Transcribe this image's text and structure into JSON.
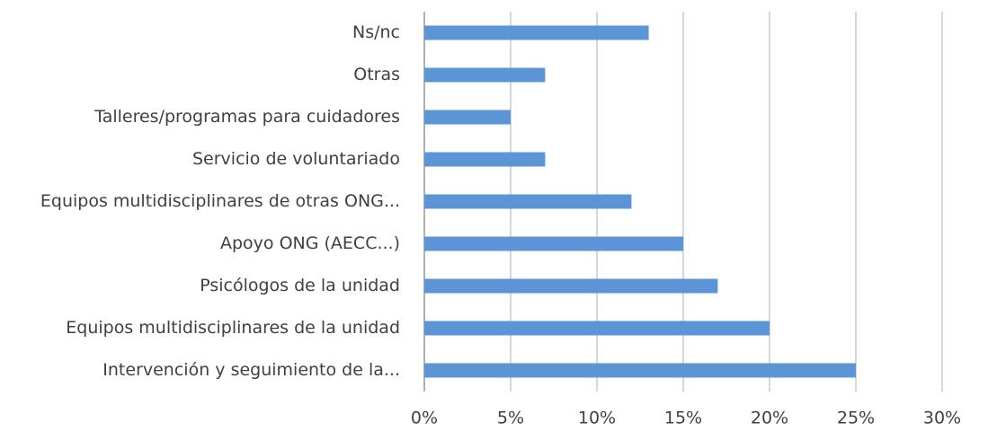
{
  "chart_data": {
    "type": "hbar",
    "categories": [
      "Ns/nc",
      "Otras",
      "Talleres/programas  para cuidadores",
      "Servicio de voluntariado",
      "Equipos multidisciplinares de otras ONG...",
      "Apoyo ONG (AECC...)",
      "Psicólogos de la unidad",
      "Equipos multidisciplinares de la unidad",
      "Intervención y seguimiento de la..."
    ],
    "values": [
      13,
      7,
      5,
      7,
      12,
      15,
      17,
      20,
      25
    ],
    "color": "#5b95d5",
    "xlim": [
      0,
      30
    ],
    "xticks": [
      {
        "value": 0,
        "label": "0%"
      },
      {
        "value": 5,
        "label": "5%"
      },
      {
        "value": 10,
        "label": "10%"
      },
      {
        "value": 15,
        "label": "15%"
      },
      {
        "value": 20,
        "label": "20%"
      },
      {
        "value": 25,
        "label": "25%"
      },
      {
        "value": 30,
        "label": "30%"
      }
    ],
    "grid": true
  }
}
